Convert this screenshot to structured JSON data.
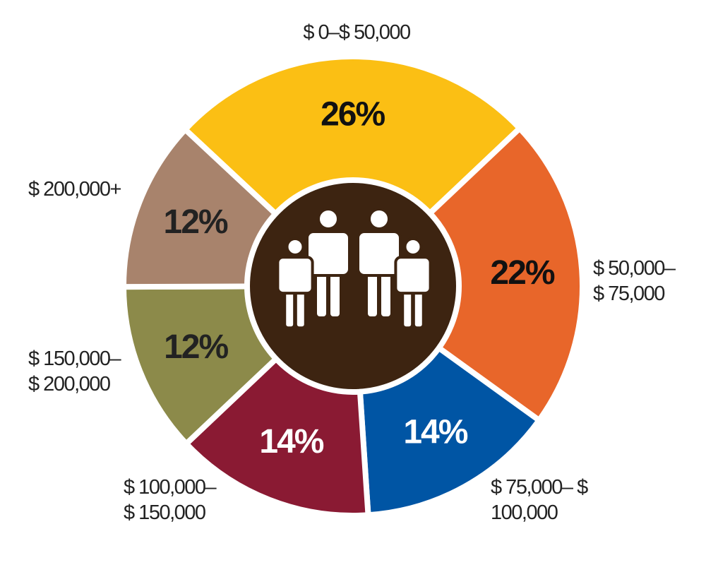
{
  "chart_data": {
    "type": "pie",
    "categories": [
      "$ 0–$ 50,000",
      "$ 50,000– $ 75,000",
      "$ 75,000– $ 100,000",
      "$ 100,000– $ 150,000",
      "$ 150,000– $ 200,000",
      "$ 200,000+"
    ],
    "values": [
      26,
      22,
      14,
      14,
      12,
      12
    ],
    "value_labels": [
      "26%",
      "22%",
      "14%",
      "14%",
      "12%",
      "12%"
    ],
    "colors": [
      "#fbbf14",
      "#e8662a",
      "#0055a4",
      "#8a1a33",
      "#8c8a4a",
      "#a8836c"
    ],
    "label_colors": [
      "#111111",
      "#111111",
      "#ffffff",
      "#ffffff",
      "#222222",
      "#222222"
    ]
  }
}
